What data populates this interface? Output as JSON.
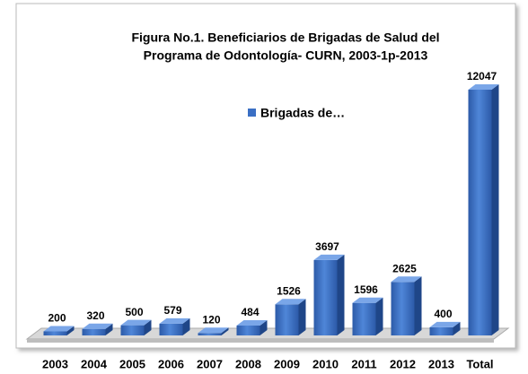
{
  "chart_data": {
    "type": "bar3d",
    "title": [
      "Figura No.1. Beneficiarios de Brigadas de Salud del",
      "Programa de Odontología- CURN, 2003-1p-2013"
    ],
    "categories": [
      "2003",
      "2004",
      "2005",
      "2006",
      "2007",
      "2008",
      "2009",
      "2010",
      "2011",
      "2012",
      "2013",
      "Total"
    ],
    "series": [
      {
        "name": "Brigadas de…",
        "color": "#3a6fc4",
        "values": [
          200,
          320,
          500,
          579,
          120,
          484,
          1526,
          3697,
          1596,
          2625,
          400,
          12047
        ]
      }
    ],
    "legend": "top-center"
  }
}
